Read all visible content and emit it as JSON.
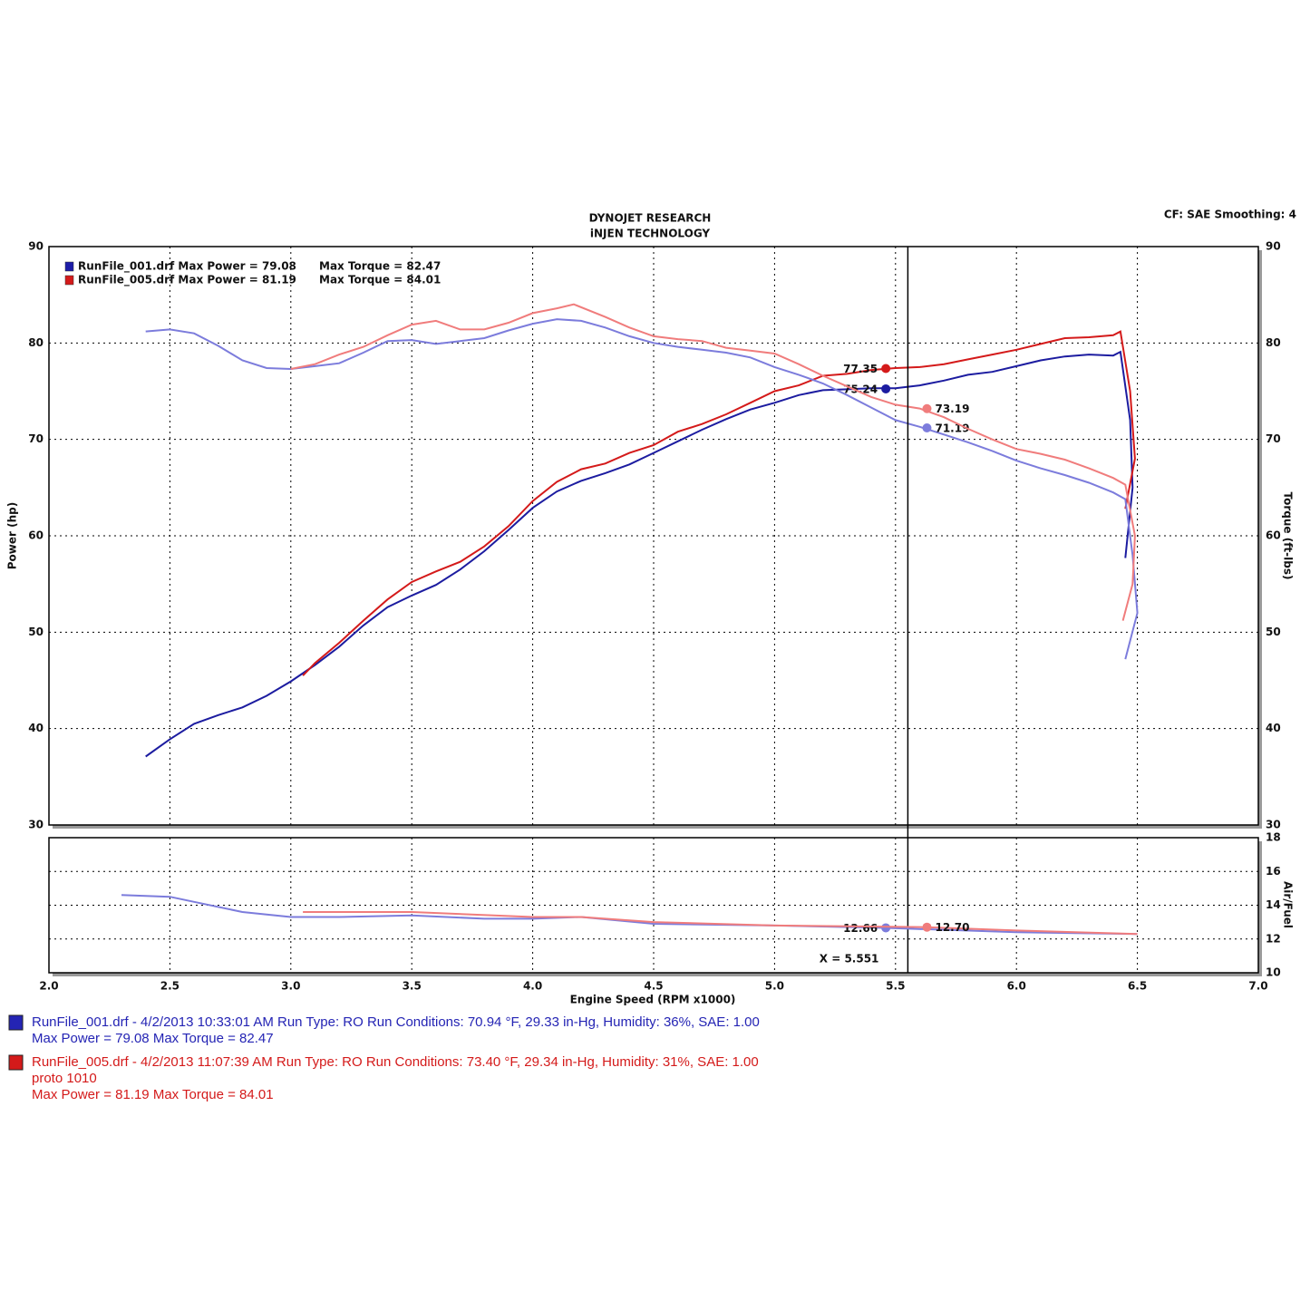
{
  "chart_data": [
    {
      "type": "line",
      "title": "DYNOJET RESEARCH",
      "subtitle": "iNJEN TECHNOLOGY",
      "settings_text": "CF: SAE  Smoothing: 4",
      "ylabel": "Power (hp)",
      "y2label": "Torque (ft-lbs)",
      "xlim": [
        2,
        7
      ],
      "xticks": [
        {
          "value": 2,
          "label": "2.0"
        },
        2.5,
        {
          "value": 3,
          "label": "3.0"
        },
        3.5,
        {
          "value": 4,
          "label": "4.0"
        },
        4.5,
        {
          "value": 5,
          "label": "5.0"
        },
        5.5,
        {
          "value": 6,
          "label": "6.0"
        },
        6.5,
        {
          "value": 7,
          "label": "7.0"
        }
      ],
      "ylim": [
        30,
        90
      ],
      "yticks": [
        30,
        40,
        50,
        60,
        70,
        80,
        90
      ],
      "y2lim": [
        30,
        90
      ],
      "y2ticks": [
        30,
        40,
        50,
        60,
        70,
        80,
        90
      ],
      "grid": true,
      "legend": [
        {
          "power": "RunFile_001.drf Max Power = 79.08",
          "torque": "Max Torque = 82.47",
          "color": "#1c1ca8"
        },
        {
          "power": "RunFile_005.drf Max Power = 81.19",
          "torque": "Max Torque = 84.01",
          "color": "#d41a1a"
        }
      ],
      "series": [
        {
          "name": "RunFile_001.drf Power",
          "color": "#1c1ca0",
          "x": [
            2.4,
            2.5,
            2.6,
            2.7,
            2.8,
            2.9,
            3.0,
            3.1,
            3.2,
            3.3,
            3.4,
            3.5,
            3.6,
            3.7,
            3.8,
            3.9,
            4.0,
            4.1,
            4.2,
            4.3,
            4.4,
            4.5,
            4.6,
            4.7,
            4.8,
            4.9,
            5.0,
            5.1,
            5.2,
            5.3,
            5.4,
            5.5,
            5.6,
            5.7,
            5.8,
            5.9,
            6.0,
            6.1,
            6.2,
            6.3,
            6.4,
            6.43,
            6.47,
            6.48,
            6.45
          ],
          "values": [
            37.1,
            38.9,
            40.5,
            41.4,
            42.2,
            43.4,
            44.9,
            46.6,
            48.5,
            50.7,
            52.6,
            53.8,
            54.9,
            56.5,
            58.4,
            60.6,
            62.9,
            64.6,
            65.7,
            66.5,
            67.4,
            68.6,
            69.8,
            71.0,
            72.1,
            73.1,
            73.8,
            74.6,
            75.1,
            75.2,
            75.3,
            75.3,
            75.6,
            76.1,
            76.7,
            77.0,
            77.6,
            78.2,
            78.6,
            78.8,
            78.7,
            79.08,
            72.0,
            65.0,
            57.7
          ],
          "marker": {
            "x": 5.46,
            "value": 75.24,
            "label": "75.24"
          }
        },
        {
          "name": "RunFile_005.drf Power",
          "color": "#d41a1a",
          "x": [
            3.05,
            3.1,
            3.2,
            3.3,
            3.4,
            3.5,
            3.6,
            3.7,
            3.8,
            3.9,
            4.0,
            4.1,
            4.2,
            4.3,
            4.4,
            4.5,
            4.6,
            4.7,
            4.8,
            4.9,
            5.0,
            5.1,
            5.2,
            5.3,
            5.4,
            5.5,
            5.6,
            5.7,
            5.8,
            5.9,
            6.0,
            6.1,
            6.2,
            6.3,
            6.4,
            6.43,
            6.47,
            6.49,
            6.45
          ],
          "values": [
            45.5,
            46.8,
            48.9,
            51.2,
            53.4,
            55.2,
            56.3,
            57.3,
            58.9,
            61.0,
            63.6,
            65.6,
            66.9,
            67.5,
            68.6,
            69.4,
            70.8,
            71.6,
            72.6,
            73.8,
            75.0,
            75.6,
            76.6,
            76.8,
            77.2,
            77.4,
            77.5,
            77.8,
            78.3,
            78.8,
            79.3,
            79.9,
            80.5,
            80.6,
            80.8,
            81.19,
            75.0,
            68.0,
            62.8
          ],
          "marker": {
            "x": 5.46,
            "value": 77.35,
            "label": "77.35"
          }
        },
        {
          "name": "RunFile_001.drf Torque",
          "color": "#7c7cdc",
          "axis": "y2",
          "x": [
            2.4,
            2.5,
            2.6,
            2.7,
            2.8,
            2.9,
            3.0,
            3.1,
            3.2,
            3.3,
            3.4,
            3.5,
            3.6,
            3.7,
            3.8,
            3.9,
            4.0,
            4.1,
            4.2,
            4.3,
            4.4,
            4.5,
            4.6,
            4.7,
            4.8,
            4.9,
            5.0,
            5.1,
            5.2,
            5.3,
            5.4,
            5.5,
            5.6,
            5.7,
            5.8,
            5.9,
            6.0,
            6.1,
            6.2,
            6.3,
            6.4,
            6.45,
            6.48,
            6.5,
            6.45
          ],
          "values": [
            81.2,
            81.4,
            81.0,
            79.7,
            78.2,
            77.4,
            77.3,
            77.6,
            77.9,
            79.0,
            80.2,
            80.3,
            79.9,
            80.2,
            80.5,
            81.3,
            82.0,
            82.47,
            82.3,
            81.6,
            80.7,
            80.0,
            79.6,
            79.3,
            79.0,
            78.5,
            77.5,
            76.7,
            75.8,
            74.6,
            73.3,
            72.0,
            71.3,
            70.5,
            69.7,
            68.8,
            67.8,
            67.0,
            66.3,
            65.5,
            64.5,
            63.8,
            58.0,
            52.0,
            47.2
          ],
          "marker": {
            "x": 5.63,
            "value": 71.19,
            "label": "71.19"
          }
        },
        {
          "name": "RunFile_005.drf Torque",
          "color": "#f07c7c",
          "axis": "y2",
          "x": [
            3.0,
            3.1,
            3.2,
            3.3,
            3.4,
            3.5,
            3.6,
            3.7,
            3.8,
            3.9,
            4.0,
            4.1,
            4.17,
            4.3,
            4.4,
            4.5,
            4.6,
            4.7,
            4.8,
            4.9,
            5.0,
            5.1,
            5.2,
            5.3,
            5.4,
            5.5,
            5.6,
            5.7,
            5.8,
            5.9,
            6.0,
            6.1,
            6.2,
            6.3,
            6.4,
            6.45,
            6.49,
            6.48,
            6.44
          ],
          "values": [
            77.3,
            77.8,
            78.8,
            79.6,
            80.8,
            81.9,
            82.3,
            81.4,
            81.4,
            82.1,
            83.1,
            83.6,
            84.01,
            82.7,
            81.6,
            80.7,
            80.4,
            80.2,
            79.5,
            79.2,
            78.9,
            77.8,
            76.6,
            75.5,
            74.4,
            73.6,
            73.2,
            72.3,
            71.1,
            70.0,
            69.0,
            68.5,
            67.9,
            67.0,
            66.0,
            65.3,
            60.0,
            55.0,
            51.2
          ],
          "marker": {
            "x": 5.63,
            "value": 73.19,
            "label": "73.19"
          }
        }
      ]
    },
    {
      "type": "line",
      "ylabel": "Air/Fuel",
      "xlabel": "Engine Speed (RPM x1000)",
      "xlim": [
        2,
        7
      ],
      "xticks": [
        {
          "value": 2,
          "label": "2.0"
        },
        2.5,
        {
          "value": 3,
          "label": "3.0"
        },
        3.5,
        {
          "value": 4,
          "label": "4.0"
        },
        4.5,
        {
          "value": 5,
          "label": "5.0"
        },
        5.5,
        {
          "value": 6,
          "label": "6.0"
        },
        6.5,
        {
          "value": 7,
          "label": "7.0"
        }
      ],
      "ylim": [
        10,
        18
      ],
      "yticks": [
        10,
        12,
        14,
        16,
        18
      ],
      "grid": true,
      "cursor": {
        "value": 5.551,
        "label": "X = 5.551"
      },
      "series": [
        {
          "name": "RunFile_001.drf Air/Fuel",
          "color": "#7c7cdc",
          "x": [
            2.3,
            2.5,
            2.6,
            2.8,
            3.0,
            3.2,
            3.5,
            3.8,
            4.0,
            4.2,
            4.5,
            5.0,
            5.46,
            6.0,
            6.5
          ],
          "values": [
            14.6,
            14.5,
            14.2,
            13.6,
            13.3,
            13.3,
            13.4,
            13.2,
            13.2,
            13.3,
            12.9,
            12.8,
            12.66,
            12.4,
            12.3
          ],
          "marker": {
            "x": 5.46,
            "value": 12.66,
            "label": "12.66"
          }
        },
        {
          "name": "RunFile_005.drf Air/Fuel",
          "color": "#f07c7c",
          "x": [
            3.05,
            3.5,
            4.0,
            4.2,
            4.5,
            5.0,
            5.63,
            6.0,
            6.5
          ],
          "values": [
            13.6,
            13.6,
            13.3,
            13.3,
            13.0,
            12.8,
            12.7,
            12.5,
            12.3
          ],
          "marker": {
            "x": 5.63,
            "value": 12.7,
            "label": "12.70"
          }
        }
      ]
    }
  ],
  "footer": [
    {
      "color": "#2424b4",
      "lines": [
        "RunFile_001.drf - 4/2/2013 10:33:01 AM  Run Type: RO  Run Conditions: 70.94 °F, 29.33 in-Hg,  Humidity:  36%, SAE: 1.00",
        "Max Power = 79.08  Max Torque = 82.47"
      ]
    },
    {
      "color": "#d41a1a",
      "lines": [
        "RunFile_005.drf - 4/2/2013 11:07:39 AM  Run Type: RO  Run Conditions: 73.40 °F, 29.34 in-Hg,  Humidity:  31%, SAE: 1.00",
        "proto 1010",
        "Max Power = 81.19  Max Torque = 84.01"
      ]
    }
  ]
}
